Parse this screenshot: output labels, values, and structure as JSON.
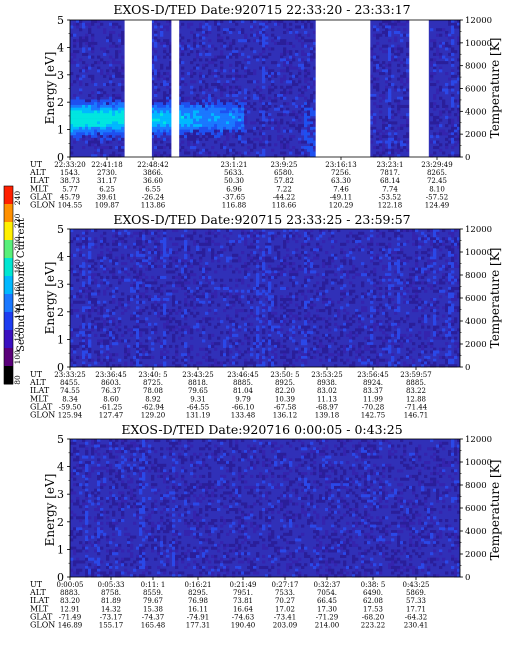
{
  "colorbar": {
    "label": "Second Harmonic Current",
    "ticks": [
      "80",
      "100",
      "120",
      "140",
      "160",
      "180",
      "200",
      "220",
      "240"
    ],
    "colors": [
      "#000000",
      "#5a007a",
      "#3a10c0",
      "#1e3cf0",
      "#1a78ff",
      "#00b8ff",
      "#00e6d2",
      "#58f07a",
      "#fff000",
      "#ff9000",
      "#ff2000"
    ]
  },
  "chart_data": [
    {
      "type": "heatmap",
      "title": "EXOS-D/TED   Date:920715  22:33:20 - 23:33:17",
      "ylabel": "Energy [eV]",
      "ylabel2": "Temperature [K]",
      "ylim": [
        0,
        5
      ],
      "ylim2": [
        0,
        12000
      ],
      "yticks": [
        "0",
        "1",
        "2",
        "3",
        "4",
        "5"
      ],
      "yticks2": [
        "0",
        "2000",
        "4000",
        "6000",
        "8000",
        "10000",
        "12000"
      ],
      "gaps": [
        [
          0.14,
          0.21
        ],
        [
          0.26,
          0.28
        ],
        [
          0.63,
          0.77
        ],
        [
          0.87,
          0.92
        ]
      ],
      "intensity": "high",
      "ephemeris_rows": [
        {
          "label": "UT",
          "values": [
            "22:33:20",
            "22:41:18",
            "22:48:42",
            "23:1:21",
            "23:9:25",
            "23:16:13",
            "23:23:1",
            "23:29:49"
          ]
        },
        {
          "label": "ALT",
          "values": [
            "1543.",
            "2730.",
            "3866.",
            "5633.",
            "6580.",
            "7256.",
            "7817.",
            "8265."
          ]
        },
        {
          "label": "ILAT",
          "values": [
            "38.73",
            "31.17",
            "36.60",
            "50.30",
            "57.82",
            "63.30",
            "68.14",
            "72.45"
          ]
        },
        {
          "label": "MLT",
          "values": [
            "5.77",
            "6.25",
            "6.55",
            "6.96",
            "7.22",
            "7.46",
            "7.74",
            "8.10"
          ]
        },
        {
          "label": "GLAT",
          "values": [
            "45.79",
            "39.61",
            "-26.24",
            "-37.65",
            "-44.22",
            "-49.11",
            "-53.52",
            "-57.52"
          ]
        },
        {
          "label": "GLON",
          "values": [
            "104.55",
            "109.87",
            "113.86",
            "116.88",
            "118.66",
            "120.29",
            "122.18",
            "124.49"
          ]
        }
      ]
    },
    {
      "type": "heatmap",
      "title": "EXOS-D/TED   Date:920715  23:33:25 - 23:59:57",
      "ylabel": "Energy [eV]",
      "ylabel2": "Temperature [K]",
      "ylim": [
        0,
        5
      ],
      "ylim2": [
        0,
        12000
      ],
      "yticks": [
        "0",
        "1",
        "2",
        "3",
        "4",
        "5"
      ],
      "yticks2": [
        "0",
        "2000",
        "4000",
        "6000",
        "8000",
        "10000",
        "12000"
      ],
      "gaps": [],
      "intensity": "low",
      "ephemeris_rows": [
        {
          "label": "UT",
          "values": [
            "23:33:25",
            "23:36:45",
            "23:40: 5",
            "23:43:25",
            "23:46:45",
            "23:50: 5",
            "23:53:25",
            "23:56:45",
            "23:59:57"
          ]
        },
        {
          "label": "ALT",
          "values": [
            "8455.",
            "8603.",
            "8725.",
            "8818.",
            "8885.",
            "8925.",
            "8938.",
            "8924.",
            "8885."
          ]
        },
        {
          "label": "ILAT",
          "values": [
            "74.55",
            "76.37",
            "78.08",
            "79.65",
            "81.04",
            "82.20",
            "83.02",
            "83.37",
            "83.22"
          ]
        },
        {
          "label": "MLT",
          "values": [
            "8.34",
            "8.60",
            "8.92",
            "9.31",
            "9.79",
            "10.39",
            "11.13",
            "11.99",
            "12.88"
          ]
        },
        {
          "label": "GLAT",
          "values": [
            "-59.50",
            "-61.25",
            "-62.94",
            "-64.55",
            "-66.10",
            "-67.58",
            "-68.97",
            "-70.28",
            "-71.44"
          ]
        },
        {
          "label": "GLON",
          "values": [
            "125.94",
            "127.47",
            "129.20",
            "131.19",
            "133.48",
            "136.12",
            "139.18",
            "142.75",
            "146.71"
          ]
        }
      ]
    },
    {
      "type": "heatmap",
      "title": "EXOS-D/TED   Date:920716  0:00:05 - 0:43:25",
      "ylabel": "Energy [eV]",
      "ylabel2": "Temperature [K]",
      "ylim": [
        0,
        5
      ],
      "ylim2": [
        0,
        12000
      ],
      "yticks": [
        "0",
        "1",
        "2",
        "3",
        "4",
        "5"
      ],
      "yticks2": [
        "0",
        "2000",
        "4000",
        "6000",
        "8000",
        "10000",
        "12000"
      ],
      "gaps": [],
      "intensity": "low",
      "ephemeris_rows": [
        {
          "label": "UT",
          "values": [
            "0:00:05",
            "0:05:33",
            "0:11: 1",
            "0:16:21",
            "0:21:49",
            "0:27:17",
            "0:32:37",
            "0:38: 5",
            "0:43:25"
          ]
        },
        {
          "label": "ALT",
          "values": [
            "8883.",
            "8758.",
            "8559.",
            "8295.",
            "7951.",
            "7533.",
            "7054.",
            "6490.",
            "5869."
          ]
        },
        {
          "label": "ILAT",
          "values": [
            "83.20",
            "81.89",
            "79.67",
            "76.98",
            "73.81",
            "70.27",
            "66.45",
            "62.08",
            "57.33"
          ]
        },
        {
          "label": "MLT",
          "values": [
            "12.91",
            "14.32",
            "15.38",
            "16.11",
            "16.64",
            "17.02",
            "17.30",
            "17.53",
            "17.71"
          ]
        },
        {
          "label": "GLAT",
          "values": [
            "-71.49",
            "-73.17",
            "-74.37",
            "-74.91",
            "-74.63",
            "-73.41",
            "-71.29",
            "-68.20",
            "-64.32"
          ]
        },
        {
          "label": "GLON",
          "values": [
            "146.89",
            "155.17",
            "165.48",
            "177.31",
            "190.40",
            "203.09",
            "214.00",
            "223.22",
            "230.41"
          ]
        }
      ]
    }
  ]
}
